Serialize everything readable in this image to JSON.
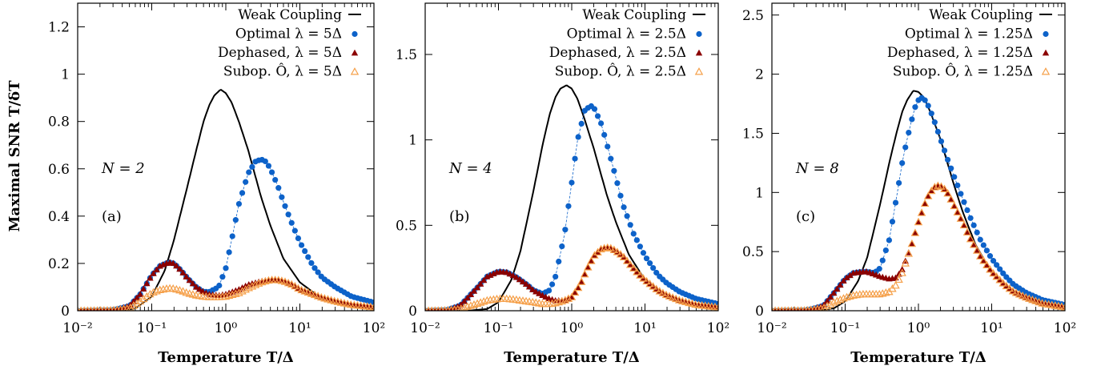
{
  "colors": {
    "weak": "#000000",
    "optimal": "#0d62c9",
    "dephased": "#8b0000",
    "subop": "#f5a04a"
  },
  "ylabel": "Maximal SNR T/δT",
  "xlabel": "Temperature T/Δ",
  "chart_data": [
    {
      "type": "line",
      "xscale": "log",
      "xlim": [
        0.01,
        100
      ],
      "ylim": [
        0,
        1.3
      ],
      "yticks": [
        "0",
        "0.2",
        "0.4",
        "0.6",
        "0.8",
        "1",
        "1.2"
      ],
      "ytick_values": [
        0,
        0.2,
        0.4,
        0.6,
        0.8,
        1,
        1.2
      ],
      "xticks": [
        "10⁻²",
        "10⁻¹",
        "10⁰",
        "10¹",
        "10²"
      ],
      "xtick_values": [
        0.01,
        0.1,
        1,
        10,
        100
      ],
      "annotation": "N = 2",
      "panel_label": "(a)",
      "legend_placement": "top-right",
      "series": [
        {
          "name": "Weak Coupling",
          "style": "line",
          "x": [
            0.02,
            0.04,
            0.06,
            0.1,
            0.15,
            0.2,
            0.3,
            0.4,
            0.5,
            0.6,
            0.7,
            0.85,
            1,
            1.2,
            1.5,
            2,
            3,
            4,
            6,
            10,
            20,
            50,
            100
          ],
          "y": [
            0,
            0.002,
            0.01,
            0.06,
            0.17,
            0.3,
            0.52,
            0.68,
            0.8,
            0.87,
            0.91,
            0.935,
            0.92,
            0.88,
            0.8,
            0.68,
            0.48,
            0.36,
            0.22,
            0.12,
            0.05,
            0.02,
            0.01
          ]
        },
        {
          "name": "Optimal λ = 5Δ",
          "style": "circle",
          "x": [
            0.01,
            0.03,
            0.05,
            0.07,
            0.1,
            0.13,
            0.17,
            0.2,
            0.25,
            0.3,
            0.4,
            0.5,
            0.6,
            0.8,
            1,
            1.2,
            1.5,
            2,
            2.5,
            3,
            3.5,
            4,
            5,
            6,
            8,
            10,
            15,
            20,
            30,
            50,
            100
          ],
          "y": [
            0,
            0.003,
            0.02,
            0.07,
            0.15,
            0.19,
            0.205,
            0.2,
            0.17,
            0.14,
            0.1,
            0.08,
            0.08,
            0.1,
            0.18,
            0.3,
            0.45,
            0.58,
            0.63,
            0.64,
            0.63,
            0.6,
            0.53,
            0.46,
            0.36,
            0.29,
            0.19,
            0.14,
            0.1,
            0.06,
            0.035
          ]
        },
        {
          "name": "Dephased, λ = 5Δ",
          "style": "triangle",
          "x": [
            0.01,
            0.03,
            0.05,
            0.07,
            0.1,
            0.13,
            0.17,
            0.2,
            0.25,
            0.3,
            0.4,
            0.5,
            0.6,
            0.8,
            1,
            1.5,
            2,
            3,
            4,
            5,
            6,
            8,
            10,
            15,
            20,
            30,
            50,
            100
          ],
          "y": [
            0,
            0.003,
            0.02,
            0.07,
            0.15,
            0.19,
            0.205,
            0.2,
            0.17,
            0.14,
            0.1,
            0.08,
            0.07,
            0.065,
            0.07,
            0.09,
            0.11,
            0.125,
            0.13,
            0.13,
            0.125,
            0.11,
            0.09,
            0.07,
            0.055,
            0.04,
            0.025,
            0.015
          ]
        },
        {
          "name": "Subop. Ô, λ = 5Δ",
          "style": "open-triangle",
          "x": [
            0.01,
            0.03,
            0.05,
            0.07,
            0.1,
            0.13,
            0.17,
            0.2,
            0.25,
            0.3,
            0.4,
            0.5,
            0.6,
            0.8,
            1,
            1.5,
            2,
            3,
            4,
            5,
            6,
            8,
            10,
            15,
            20,
            30,
            50,
            100
          ],
          "y": [
            0,
            0.002,
            0.01,
            0.04,
            0.075,
            0.088,
            0.095,
            0.093,
            0.085,
            0.075,
            0.065,
            0.06,
            0.058,
            0.058,
            0.06,
            0.075,
            0.095,
            0.12,
            0.13,
            0.13,
            0.125,
            0.11,
            0.09,
            0.07,
            0.055,
            0.04,
            0.025,
            0.015
          ]
        }
      ]
    },
    {
      "type": "line",
      "xscale": "log",
      "xlim": [
        0.01,
        100
      ],
      "ylim": [
        0,
        1.8
      ],
      "yticks": [
        "0",
        "0.5",
        "1",
        "1.5"
      ],
      "ytick_values": [
        0,
        0.5,
        1,
        1.5
      ],
      "xticks": [
        "10⁻²",
        "10⁻¹",
        "10⁰",
        "10¹",
        "10²"
      ],
      "xtick_values": [
        0.01,
        0.1,
        1,
        10,
        100
      ],
      "annotation": "N = 4",
      "panel_label": "(b)",
      "legend_placement": "top-right",
      "series": [
        {
          "name": "Weak Coupling",
          "style": "line",
          "x": [
            0.02,
            0.04,
            0.07,
            0.1,
            0.15,
            0.2,
            0.3,
            0.4,
            0.5,
            0.6,
            0.7,
            0.85,
            1,
            1.2,
            1.5,
            2,
            3,
            4,
            6,
            10,
            20,
            50,
            100
          ],
          "y": [
            0,
            0.001,
            0.01,
            0.05,
            0.18,
            0.35,
            0.7,
            0.97,
            1.15,
            1.25,
            1.3,
            1.32,
            1.3,
            1.24,
            1.12,
            0.95,
            0.68,
            0.52,
            0.33,
            0.18,
            0.08,
            0.03,
            0.015
          ]
        },
        {
          "name": "Optimal λ = 2.5Δ",
          "style": "circle",
          "x": [
            0.01,
            0.02,
            0.03,
            0.05,
            0.07,
            0.1,
            0.13,
            0.17,
            0.2,
            0.25,
            0.3,
            0.4,
            0.5,
            0.6,
            0.8,
            1,
            1.2,
            1.5,
            1.8,
            2,
            2.5,
            3,
            4,
            5,
            7,
            10,
            15,
            20,
            30,
            50,
            100
          ],
          "y": [
            0,
            0.005,
            0.03,
            0.13,
            0.2,
            0.23,
            0.225,
            0.2,
            0.18,
            0.15,
            0.12,
            0.1,
            0.12,
            0.2,
            0.45,
            0.75,
            1.0,
            1.17,
            1.2,
            1.19,
            1.1,
            0.98,
            0.78,
            0.62,
            0.45,
            0.32,
            0.21,
            0.16,
            0.11,
            0.07,
            0.04
          ]
        },
        {
          "name": "Dephased, λ = 2.5Δ",
          "style": "triangle",
          "x": [
            0.01,
            0.02,
            0.03,
            0.05,
            0.07,
            0.1,
            0.13,
            0.17,
            0.2,
            0.25,
            0.3,
            0.4,
            0.5,
            0.6,
            0.8,
            1,
            1.3,
            1.6,
            2,
            2.5,
            3,
            3.5,
            4,
            5,
            6,
            8,
            10,
            15,
            20,
            30,
            50,
            100
          ],
          "y": [
            0,
            0.005,
            0.03,
            0.13,
            0.2,
            0.23,
            0.225,
            0.2,
            0.18,
            0.15,
            0.12,
            0.09,
            0.07,
            0.06,
            0.06,
            0.08,
            0.15,
            0.24,
            0.32,
            0.36,
            0.37,
            0.365,
            0.35,
            0.32,
            0.28,
            0.22,
            0.18,
            0.12,
            0.09,
            0.06,
            0.035,
            0.02
          ]
        },
        {
          "name": "Subop. Ô, λ = 2.5Δ",
          "style": "open-triangle",
          "x": [
            0.01,
            0.02,
            0.03,
            0.05,
            0.07,
            0.1,
            0.13,
            0.17,
            0.2,
            0.3,
            0.4,
            0.5,
            0.6,
            0.8,
            1,
            1.3,
            1.6,
            2,
            2.5,
            3,
            3.5,
            4,
            5,
            6,
            8,
            10,
            15,
            20,
            30,
            50,
            100
          ],
          "y": [
            0,
            0.002,
            0.01,
            0.04,
            0.06,
            0.07,
            0.07,
            0.065,
            0.06,
            0.05,
            0.04,
            0.04,
            0.045,
            0.06,
            0.08,
            0.15,
            0.24,
            0.32,
            0.36,
            0.37,
            0.365,
            0.35,
            0.32,
            0.28,
            0.22,
            0.18,
            0.12,
            0.09,
            0.06,
            0.035,
            0.02
          ]
        }
      ]
    },
    {
      "type": "line",
      "xscale": "log",
      "xlim": [
        0.01,
        100
      ],
      "ylim": [
        0,
        2.6
      ],
      "yticks": [
        "0",
        "0.5",
        "1",
        "1.5",
        "2",
        "2.5"
      ],
      "ytick_values": [
        0,
        0.5,
        1,
        1.5,
        2,
        2.5
      ],
      "xticks": [
        "10⁻²",
        "10⁻¹",
        "10⁰",
        "10¹",
        "10²"
      ],
      "xtick_values": [
        0.01,
        0.1,
        1,
        10,
        100
      ],
      "annotation": "N = 8",
      "panel_label": "(c)",
      "legend_placement": "top-right",
      "series": [
        {
          "name": "Weak Coupling",
          "style": "line",
          "x": [
            0.02,
            0.04,
            0.07,
            0.1,
            0.15,
            0.2,
            0.3,
            0.4,
            0.5,
            0.6,
            0.7,
            0.85,
            1,
            1.2,
            1.5,
            2,
            3,
            4,
            6,
            10,
            20,
            50,
            100
          ],
          "y": [
            0,
            0.002,
            0.02,
            0.08,
            0.25,
            0.45,
            0.9,
            1.25,
            1.5,
            1.68,
            1.78,
            1.86,
            1.85,
            1.8,
            1.66,
            1.45,
            1.08,
            0.84,
            0.56,
            0.32,
            0.14,
            0.05,
            0.02
          ]
        },
        {
          "name": "Optimal λ = 1.25Δ",
          "style": "circle",
          "x": [
            0.01,
            0.03,
            0.05,
            0.07,
            0.1,
            0.13,
            0.17,
            0.2,
            0.25,
            0.3,
            0.4,
            0.5,
            0.6,
            0.7,
            0.8,
            0.9,
            1,
            1.1,
            1.2,
            1.4,
            1.7,
            2,
            2.5,
            3,
            4,
            5,
            7,
            10,
            15,
            20,
            30,
            50,
            100
          ],
          "y": [
            0,
            0.005,
            0.04,
            0.15,
            0.27,
            0.32,
            0.33,
            0.33,
            0.32,
            0.36,
            0.6,
            0.95,
            1.25,
            1.45,
            1.6,
            1.72,
            1.78,
            1.8,
            1.79,
            1.72,
            1.58,
            1.45,
            1.28,
            1.15,
            0.95,
            0.8,
            0.6,
            0.44,
            0.3,
            0.22,
            0.15,
            0.09,
            0.05
          ]
        },
        {
          "name": "Dephased, λ = 1.25Δ",
          "style": "triangle",
          "x": [
            0.01,
            0.03,
            0.05,
            0.07,
            0.1,
            0.13,
            0.17,
            0.2,
            0.25,
            0.3,
            0.4,
            0.5,
            0.6,
            0.8,
            1,
            1.3,
            1.6,
            1.9,
            2.2,
            2.6,
            3,
            4,
            5,
            7,
            10,
            15,
            20,
            30,
            50,
            100
          ],
          "y": [
            0,
            0.005,
            0.04,
            0.15,
            0.27,
            0.32,
            0.33,
            0.33,
            0.31,
            0.29,
            0.27,
            0.28,
            0.35,
            0.55,
            0.75,
            0.95,
            1.04,
            1.06,
            1.04,
            0.98,
            0.9,
            0.75,
            0.62,
            0.46,
            0.33,
            0.22,
            0.16,
            0.11,
            0.06,
            0.03
          ]
        },
        {
          "name": "Subop. Ô, λ = 1.25Δ",
          "style": "open-triangle",
          "x": [
            0.01,
            0.03,
            0.05,
            0.07,
            0.1,
            0.13,
            0.17,
            0.2,
            0.3,
            0.4,
            0.5,
            0.6,
            0.8,
            1,
            1.3,
            1.6,
            1.9,
            2.2,
            2.6,
            3,
            4,
            5,
            7,
            10,
            15,
            20,
            30,
            50,
            100
          ],
          "y": [
            0,
            0.003,
            0.02,
            0.07,
            0.11,
            0.13,
            0.14,
            0.14,
            0.14,
            0.16,
            0.22,
            0.32,
            0.55,
            0.75,
            0.95,
            1.04,
            1.06,
            1.04,
            0.98,
            0.9,
            0.75,
            0.62,
            0.46,
            0.33,
            0.22,
            0.16,
            0.11,
            0.06,
            0.03
          ]
        }
      ]
    }
  ]
}
